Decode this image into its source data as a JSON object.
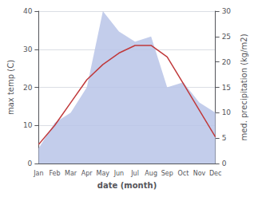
{
  "chart_data": {
    "type": "line",
    "xlabel": "date (month)",
    "ylabel": "max temp (C)",
    "y2label": "med. precipitation (kg/m2)",
    "categories": [
      "Jan",
      "Feb",
      "Mar",
      "Apr",
      "May",
      "Jun",
      "Jul",
      "Aug",
      "Sep",
      "Oct",
      "Nov",
      "Dec"
    ],
    "series": [
      {
        "type": "area",
        "color": "#b8c4e8",
        "axis": "y2",
        "values": [
          3.0,
          8.0,
          10.0,
          15.0,
          30.0,
          26.0,
          24.0,
          25.0,
          15.0,
          16.0,
          12.0,
          10.0
        ]
      },
      {
        "type": "line",
        "color": "#c0393b",
        "values": [
          5.0,
          10.0,
          16.0,
          22.0,
          26.0,
          29.0,
          31.0,
          31.0,
          28.0,
          21.0,
          14.0,
          7.0
        ]
      }
    ],
    "ylim": [
      0,
      40
    ],
    "yticks": [
      0,
      10,
      20,
      30,
      40
    ],
    "y2lim": [
      0,
      30
    ],
    "y2ticks": [
      0,
      5,
      10,
      15,
      20,
      25,
      30
    ],
    "grid": true
  }
}
